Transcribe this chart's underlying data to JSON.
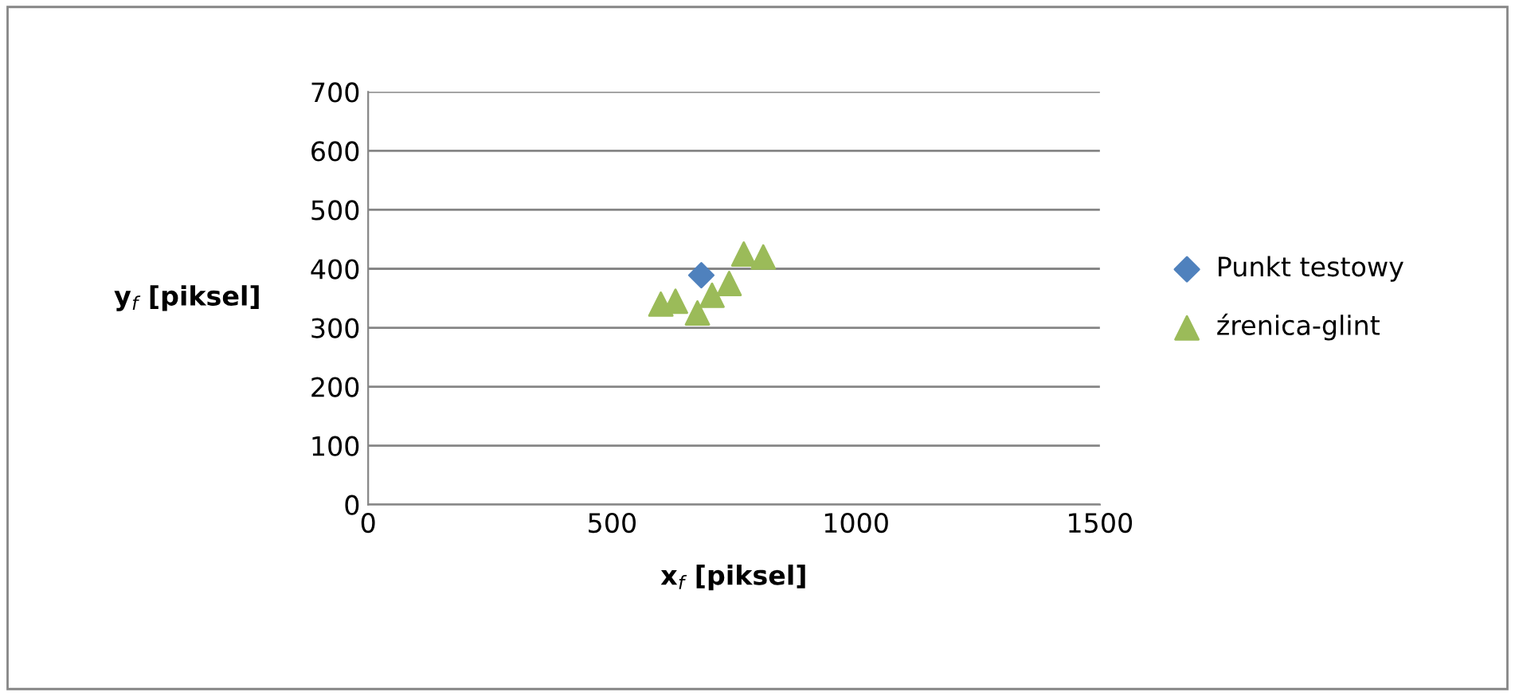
{
  "chart_data": {
    "type": "scatter",
    "xlabel": "x$_{f}$ [piksel]",
    "ylabel": "y$_{f}$ [piksel]",
    "xlim": [
      0,
      1500
    ],
    "xticks": [
      0,
      500,
      1000,
      1500
    ],
    "ylim": [
      0,
      700
    ],
    "yticks": [
      0,
      100,
      200,
      300,
      400,
      500,
      600,
      700
    ],
    "grid": "y",
    "legend": "right",
    "series": [
      {
        "name": "Punkt testowy",
        "color": "#4f81bd",
        "marker": "diamond",
        "x": [
          683
        ],
        "values": [
          389
        ]
      },
      {
        "name": "źrenica-glint",
        "color": "#9bbb59",
        "marker": "triangle",
        "x": [
          600,
          630,
          675,
          705,
          740,
          770,
          810
        ],
        "values": [
          340,
          345,
          325,
          355,
          375,
          425,
          420
        ]
      }
    ]
  }
}
